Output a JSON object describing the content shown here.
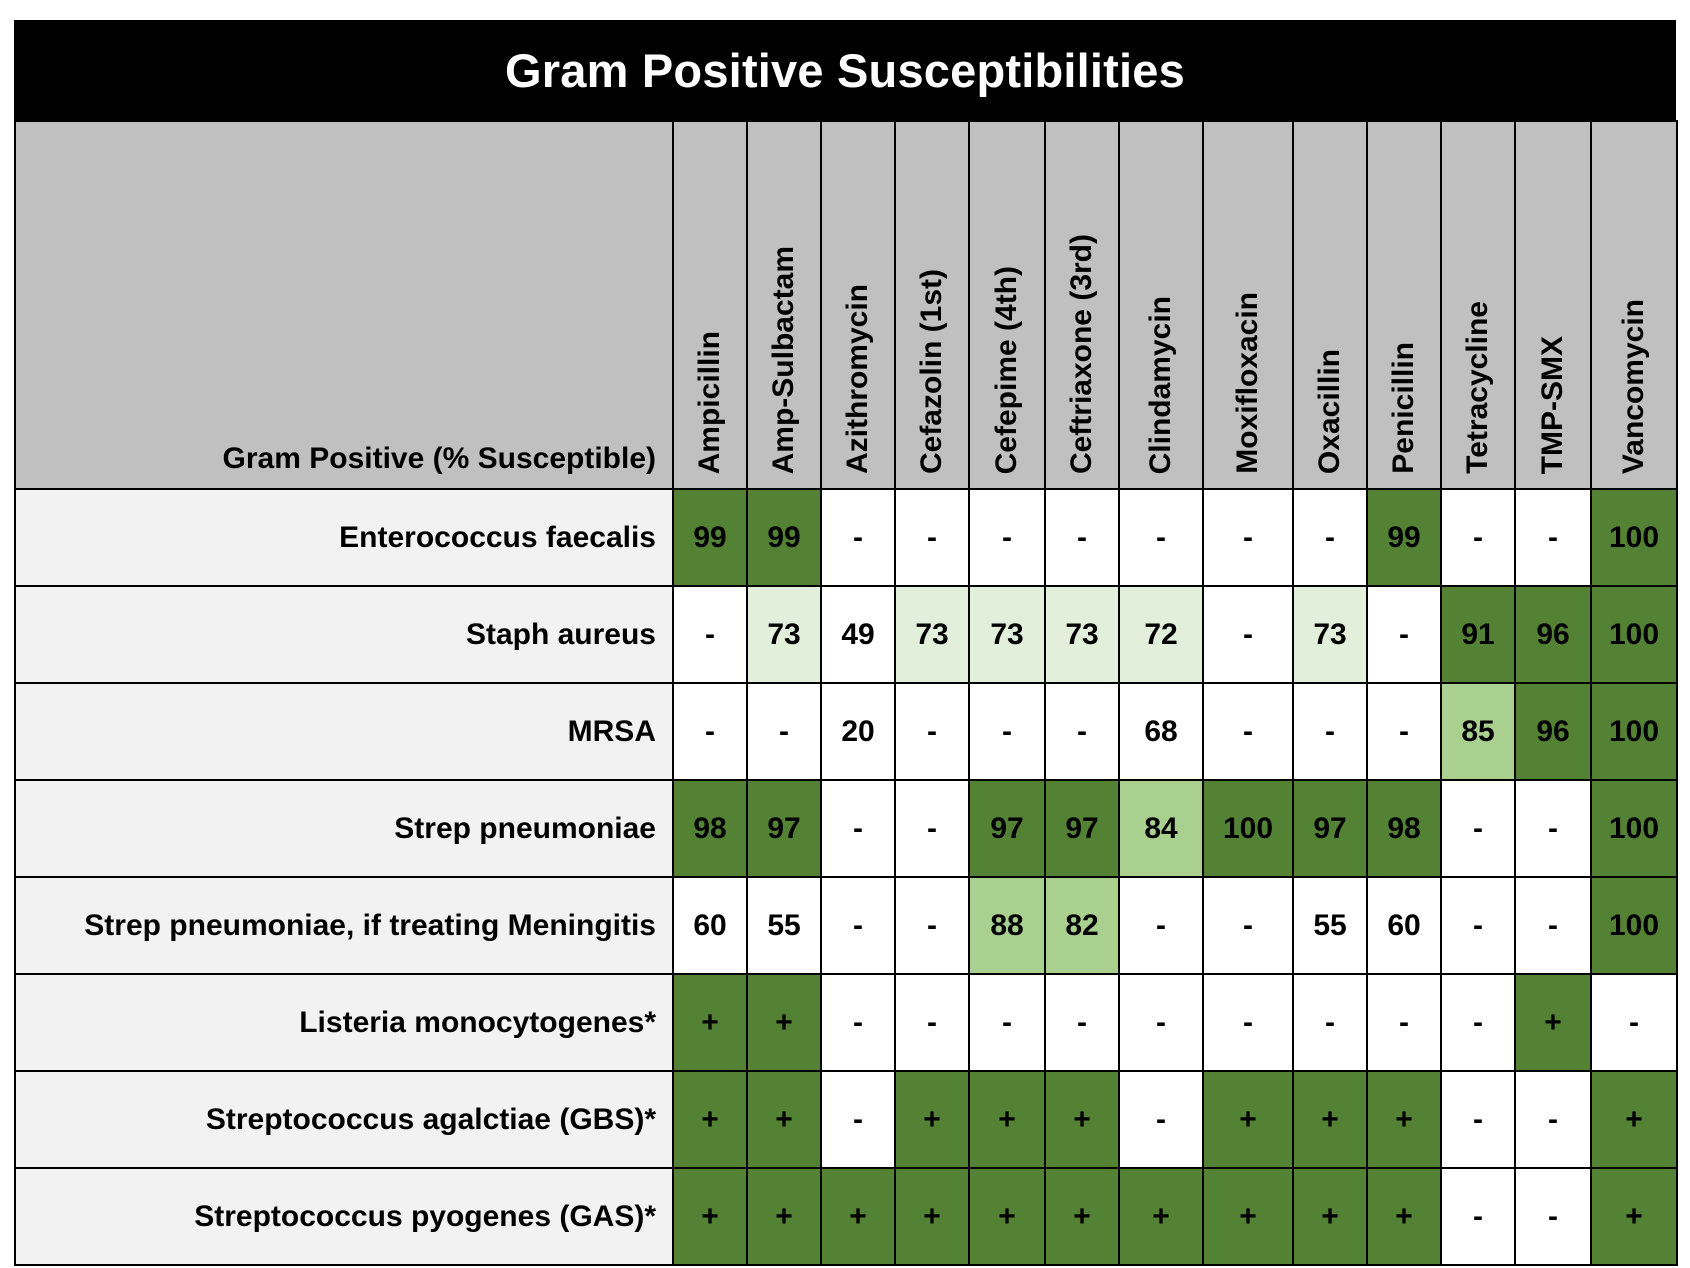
{
  "title": "Gram Positive Susceptibilities",
  "corner_label": "Gram Positive (% Susceptible)",
  "colors": {
    "header_bg": "#000000",
    "header_text": "#ffffff",
    "column_header_bg": "#c0c0c0",
    "row_label_bg": "#f2f2f2",
    "high": "#548235",
    "mid": "#a9d08e",
    "low": "#e2efda",
    "none": "#ffffff"
  },
  "antibiotics": [
    "Ampicillin",
    "Amp-Sulbactam",
    "Azithromycin",
    "Cefazolin (1st)",
    "Cefepime (4th)",
    "Ceftriaxone (3rd)",
    "Clindamycin",
    "Moxifloxacin",
    "Oxacillin",
    "Penicillin",
    "Tetracycline",
    "TMP-SMX",
    "Vancomycin"
  ],
  "rows": [
    {
      "organism": "Enterococcus faecalis",
      "values": [
        "99",
        "99",
        "-",
        "-",
        "-",
        "-",
        "-",
        "-",
        "-",
        "99",
        "-",
        "-",
        "100"
      ],
      "levels": [
        "high",
        "high",
        "none",
        "none",
        "none",
        "none",
        "none",
        "none",
        "none",
        "high",
        "none",
        "none",
        "high"
      ]
    },
    {
      "organism": "Staph aureus",
      "values": [
        "-",
        "73",
        "49",
        "73",
        "73",
        "73",
        "72",
        "-",
        "73",
        "-",
        "91",
        "96",
        "100"
      ],
      "levels": [
        "none",
        "low",
        "none",
        "low",
        "low",
        "low",
        "low",
        "none",
        "low",
        "none",
        "high",
        "high",
        "high"
      ]
    },
    {
      "organism": "MRSA",
      "values": [
        "-",
        "-",
        "20",
        "-",
        "-",
        "-",
        "68",
        "-",
        "-",
        "-",
        "85",
        "96",
        "100"
      ],
      "levels": [
        "none",
        "none",
        "none",
        "none",
        "none",
        "none",
        "none",
        "none",
        "none",
        "none",
        "mid",
        "high",
        "high"
      ]
    },
    {
      "organism": "Strep pneumoniae",
      "values": [
        "98",
        "97",
        "-",
        "-",
        "97",
        "97",
        "84",
        "100",
        "97",
        "98",
        "-",
        "-",
        "100"
      ],
      "levels": [
        "high",
        "high",
        "none",
        "none",
        "high",
        "high",
        "mid",
        "high",
        "high",
        "high",
        "none",
        "none",
        "high"
      ]
    },
    {
      "organism": "Strep pneumoniae, if treating Meningitis",
      "values": [
        "60",
        "55",
        "-",
        "-",
        "88",
        "82",
        "-",
        "-",
        "55",
        "60",
        "-",
        "-",
        "100"
      ],
      "levels": [
        "none",
        "none",
        "none",
        "none",
        "mid",
        "mid",
        "none",
        "none",
        "none",
        "none",
        "none",
        "none",
        "high"
      ]
    },
    {
      "organism": "Listeria monocytogenes*",
      "values": [
        "+",
        "+",
        "-",
        "-",
        "-",
        "-",
        "-",
        "-",
        "-",
        "-",
        "-",
        "+",
        "-"
      ],
      "levels": [
        "high",
        "high",
        "none",
        "none",
        "none",
        "none",
        "none",
        "none",
        "none",
        "none",
        "none",
        "high",
        "none"
      ]
    },
    {
      "organism": "Streptococcus agalctiae (GBS)*",
      "values": [
        "+",
        "+",
        "-",
        "+",
        "+",
        "+",
        "-",
        "+",
        "+",
        "+",
        "-",
        "-",
        "+"
      ],
      "levels": [
        "high",
        "high",
        "none",
        "high",
        "high",
        "high",
        "none",
        "high",
        "high",
        "high",
        "none",
        "none",
        "high"
      ]
    },
    {
      "organism": "Streptococcus pyogenes (GAS)*",
      "values": [
        "+",
        "+",
        "+",
        "+",
        "+",
        "+",
        "+",
        "+",
        "+",
        "+",
        "-",
        "-",
        "+"
      ],
      "levels": [
        "high",
        "high",
        "high",
        "high",
        "high",
        "high",
        "high",
        "high",
        "high",
        "high",
        "none",
        "none",
        "high"
      ]
    }
  ]
}
